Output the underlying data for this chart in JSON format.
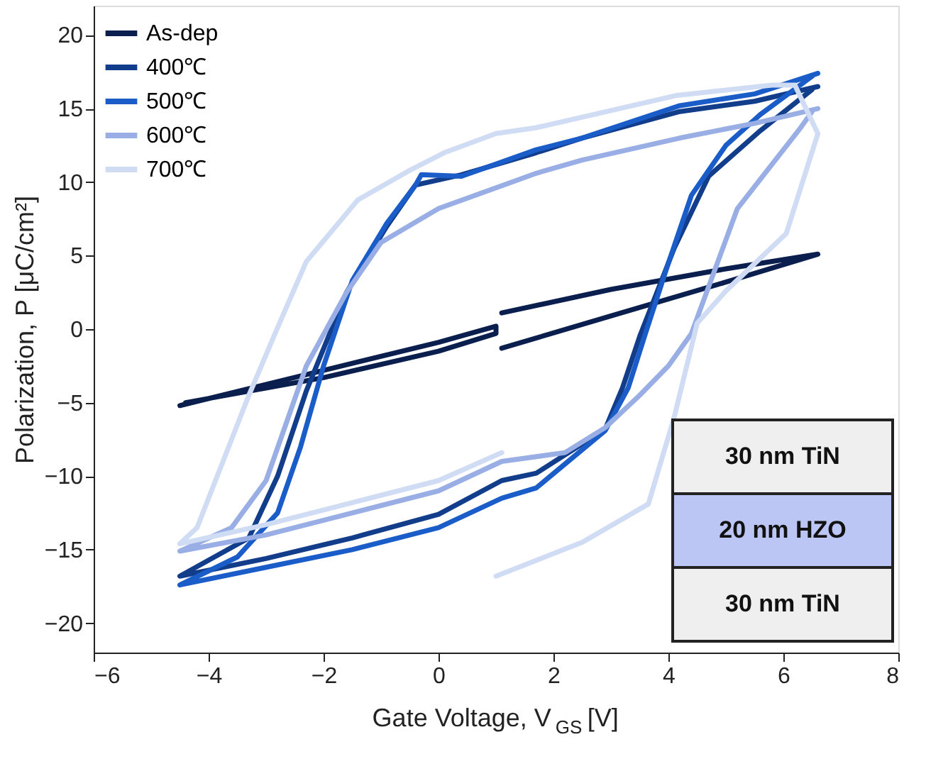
{
  "chart_data": {
    "type": "line",
    "xlabel": "Gate Voltage, V$_{GS}$ [V]",
    "ylabel": "Polarization, P [μC/cm²]",
    "xlim": [
      -6,
      8
    ],
    "xticks": [
      -6,
      -4,
      -2,
      0,
      2,
      4,
      6,
      8
    ],
    "ylim": [
      -22,
      22
    ],
    "yticks": [
      -20,
      -15,
      -10,
      -5,
      0,
      5,
      10,
      15,
      20
    ],
    "grid": false,
    "legend": "top left",
    "line_style": "solid",
    "marker": "none",
    "annotations": [
      "30 nm TiN",
      "20 nm HZO",
      "30 nm TiN"
    ],
    "series": [
      {
        "name": "As-dep",
        "color": "#0a1f4e",
        "x": [
          -4.5,
          -2,
          0,
          1.0,
          1.0,
          0,
          -2,
          -4.4,
          null,
          1.1,
          3,
          5,
          6.6,
          5,
          3,
          1.1
        ],
        "values": [
          -5.2,
          -2.8,
          -0.9,
          0.2,
          -0.3,
          -1.5,
          -3.3,
          -5.0,
          null,
          -1.3,
          0.9,
          3.2,
          5.1,
          4.1,
          2.7,
          1.1
        ]
      },
      {
        "name": "400℃",
        "color": "#123d8a",
        "x": [
          6.6,
          5.5,
          4.2,
          2.5,
          1.7,
          0.4,
          -0.4,
          -0.9,
          -1.6,
          -2.3,
          -2.8,
          -3.3,
          -4.5,
          -3,
          -1.5,
          0,
          1.1,
          1.7,
          2.9,
          3.2,
          3.5,
          4.1,
          4.7,
          5.6,
          6.5
        ],
        "values": [
          16.5,
          15.5,
          14.8,
          13.0,
          12.0,
          10.5,
          9.8,
          7.0,
          2.5,
          -4.2,
          -10,
          -14.2,
          -16.8,
          -15.6,
          -14.2,
          -12.6,
          -10.3,
          -9.8,
          -6.8,
          -4,
          -0.5,
          5.5,
          10.4,
          13.5,
          16.3
        ]
      },
      {
        "name": "500℃",
        "color": "#1a5cc8",
        "x": [
          6.6,
          5.5,
          4.2,
          2.5,
          1.7,
          0.4,
          -0.3,
          -0.4,
          -0.9,
          -1.5,
          -2.0,
          -2.4,
          -2.8,
          -3.5,
          -4.5,
          -3,
          -1.5,
          0,
          1.1,
          1.7,
          2.9,
          3.3,
          3.6,
          4.0,
          4.4,
          5.0,
          5.6,
          6.5
        ],
        "values": [
          17.4,
          16.0,
          15.2,
          13.0,
          12.2,
          10.4,
          10.5,
          9.8,
          7.2,
          3.3,
          -2.5,
          -8,
          -12.5,
          -15.5,
          -17.4,
          -16.2,
          -15.0,
          -13.5,
          -11.5,
          -10.8,
          -6.9,
          -4,
          -0.3,
          4.5,
          9.1,
          12.5,
          14.6,
          17.2
        ]
      },
      {
        "name": "600℃",
        "color": "#98aee4",
        "x": [
          6.6,
          5.5,
          4.2,
          2.5,
          1.7,
          0,
          -1.0,
          -1.6,
          -2.3,
          -3.0,
          -3.6,
          -4.5,
          -3,
          -1.5,
          0,
          1.1,
          2.2,
          2.9,
          3.5,
          4.0,
          4.4,
          5.2,
          6.3,
          6.5
        ],
        "values": [
          15.0,
          14.0,
          13.0,
          11.5,
          10.6,
          8.2,
          5.9,
          2.5,
          -2.5,
          -10.3,
          -13.5,
          -15.1,
          -14.0,
          -12.5,
          -11.0,
          -9.0,
          -8.4,
          -6.7,
          -4.5,
          -2.5,
          -0.3,
          8.2,
          13.7,
          14.8
        ]
      },
      {
        "name": "700℃",
        "color": "#cfdcf3",
        "x": [
          6.2,
          5.8,
          4.15,
          1.7,
          1.0,
          0.1,
          -0.5,
          -1.4,
          -2.3,
          -2.8,
          -3.3,
          -4.2,
          -4.5,
          -3,
          -1.5,
          0,
          1.1,
          null,
          1.0,
          2.5,
          3.65,
          4.1,
          4.5,
          5.0,
          6.05,
          6.6,
          6.2
        ],
        "values": [
          16.6,
          16.6,
          15.9,
          13.7,
          13.3,
          12.0,
          10.8,
          8.8,
          4.6,
          0.1,
          -4.5,
          -13.5,
          -14.6,
          -13.3,
          -11.8,
          -10.3,
          -8.4,
          null,
          -16.8,
          -14.5,
          -11.9,
          -6.0,
          0.4,
          2.6,
          6.5,
          13.3,
          16.6
        ]
      }
    ]
  }
}
